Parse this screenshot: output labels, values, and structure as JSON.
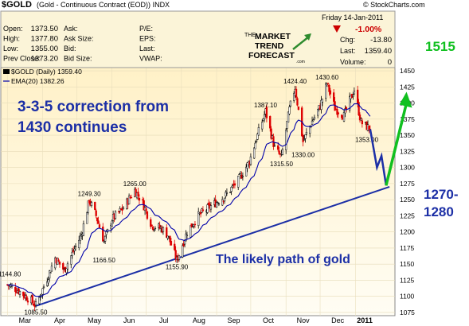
{
  "header": {
    "ticker": "$GOLD",
    "name": "(Gold - Continuous Contract (EOD))",
    "exchange": "INDX",
    "copyright": "© StockCharts.com"
  },
  "stats_box": {
    "left_labels": [
      "Open:",
      "High:",
      "Low:",
      "Prev Close:"
    ],
    "left_values": [
      "1373.50",
      "1377.80",
      "1355.00",
      "1373.20"
    ],
    "mid_labels": [
      "Ask:",
      "Ask Size:",
      "Bid:",
      "Bid Size:"
    ],
    "right_labels": [
      "P/E:",
      "EPS:",
      "Last:",
      "VWAP:"
    ],
    "date": "Friday  14-Jan-2011",
    "change_pct": "-1.00%",
    "chg_label": "Chg:",
    "chg_value": "-13.80",
    "last_label": "Last:",
    "last_value": "1359.40",
    "volume_label": "Volume:",
    "volume_value": "0"
  },
  "logo": {
    "line1": "THE",
    "line2": "MARKET",
    "line3": "TREND",
    "line4": "FORECAST",
    "line5": ".com"
  },
  "legend": {
    "main": "$GOLD (Daily) 1359.40",
    "ema": "EMA(20) 1382.26"
  },
  "annotations": {
    "correction": "3-3-5 correction from\n1430 continues",
    "path": "The likely path of gold",
    "target_high": "1515",
    "target_low_line1": "1270-",
    "target_low_line2": "1280"
  },
  "colors": {
    "up_candle": "#000000",
    "down_candle": "#dd0000",
    "ema": "#0000aa",
    "annotation_blue": "#1c2fa6",
    "arrow_green": "#11c020",
    "trendline": "#1c2fa6"
  },
  "chart_data": {
    "type": "candlestick",
    "title": "$GOLD (Daily) 1359.40",
    "ylim": [
      1070,
      1455
    ],
    "y_ticks": [
      1075,
      1100,
      1125,
      1150,
      1175,
      1200,
      1225,
      1250,
      1275,
      1300,
      1325,
      1350,
      1375,
      1400,
      1425,
      1450
    ],
    "x_tick_labels": [
      "Mar",
      "Apr",
      "May",
      "Jun",
      "Jul",
      "Aug",
      "Sep",
      "Oct",
      "Nov",
      "Dec",
      "2011"
    ],
    "price_path": [
      {
        "date": "2010-03-01",
        "price": 1118
      },
      {
        "date": "2010-03-10",
        "price": 1110
      },
      {
        "date": "2010-03-22",
        "price": 1093
      },
      {
        "date": "2010-03-26",
        "price": 1085.5
      },
      {
        "date": "2010-04-05",
        "price": 1128
      },
      {
        "date": "2010-04-12",
        "price": 1160
      },
      {
        "date": "2010-04-20",
        "price": 1140
      },
      {
        "date": "2010-04-28",
        "price": 1170
      },
      {
        "date": "2010-05-05",
        "price": 1195
      },
      {
        "date": "2010-05-12",
        "price": 1249.3
      },
      {
        "date": "2010-05-18",
        "price": 1225
      },
      {
        "date": "2010-05-25",
        "price": 1185
      },
      {
        "date": "2010-06-01",
        "price": 1220
      },
      {
        "date": "2010-06-10",
        "price": 1235
      },
      {
        "date": "2010-06-21",
        "price": 1265
      },
      {
        "date": "2010-06-28",
        "price": 1245
      },
      {
        "date": "2010-07-06",
        "price": 1210
      },
      {
        "date": "2010-07-15",
        "price": 1205
      },
      {
        "date": "2010-07-20",
        "price": 1195
      },
      {
        "date": "2010-07-28",
        "price": 1155.9
      },
      {
        "date": "2010-08-06",
        "price": 1200
      },
      {
        "date": "2010-08-16",
        "price": 1225
      },
      {
        "date": "2010-08-27",
        "price": 1240
      },
      {
        "date": "2010-09-08",
        "price": 1255
      },
      {
        "date": "2010-09-20",
        "price": 1280
      },
      {
        "date": "2010-09-30",
        "price": 1310
      },
      {
        "date": "2010-10-06",
        "price": 1345
      },
      {
        "date": "2010-10-14",
        "price": 1387.1
      },
      {
        "date": "2010-10-22",
        "price": 1330
      },
      {
        "date": "2010-10-28",
        "price": 1315.5
      },
      {
        "date": "2010-11-04",
        "price": 1390
      },
      {
        "date": "2010-11-09",
        "price": 1424.4
      },
      {
        "date": "2010-11-16",
        "price": 1340
      },
      {
        "date": "2010-11-24",
        "price": 1372
      },
      {
        "date": "2010-12-01",
        "price": 1395
      },
      {
        "date": "2010-12-07",
        "price": 1430.6
      },
      {
        "date": "2010-12-14",
        "price": 1392
      },
      {
        "date": "2010-12-22",
        "price": 1380
      },
      {
        "date": "2010-12-31",
        "price": 1421
      },
      {
        "date": "2011-01-06",
        "price": 1370
      },
      {
        "date": "2011-01-14",
        "price": 1359.4
      }
    ],
    "price_labels": [
      {
        "date": "2010-03-26",
        "value": "1085.50"
      },
      {
        "date": "2010-03-03",
        "value": "1144.80"
      },
      {
        "date": "2010-05-12",
        "value": "1249.30"
      },
      {
        "date": "2010-05-25",
        "value": "1166.50"
      },
      {
        "date": "2010-06-21",
        "value": "1265.00"
      },
      {
        "date": "2010-07-28",
        "value": "1155.90"
      },
      {
        "date": "2010-10-14",
        "value": "1387.10"
      },
      {
        "date": "2010-10-28",
        "value": "1315.50"
      },
      {
        "date": "2010-11-09",
        "value": "1424.40"
      },
      {
        "date": "2010-11-16",
        "value": "1330.00"
      },
      {
        "date": "2010-12-07",
        "value": "1430.60"
      },
      {
        "date": "2011-01-11",
        "value": "1353.00"
      }
    ],
    "ema_period": 20,
    "ema_last": 1382.26,
    "trendline": [
      {
        "date": "2010-03-26",
        "price": 1085
      },
      {
        "date": "2011-01-31",
        "price": 1270
      }
    ],
    "projected_path": [
      {
        "date": "2011-01-14",
        "price": 1359.4
      },
      {
        "date": "2011-01-20",
        "price": 1300
      },
      {
        "date": "2011-01-24",
        "price": 1318
      },
      {
        "date": "2011-01-28",
        "price": 1272
      },
      {
        "date": "2011-02-15",
        "price": 1410
      }
    ]
  }
}
